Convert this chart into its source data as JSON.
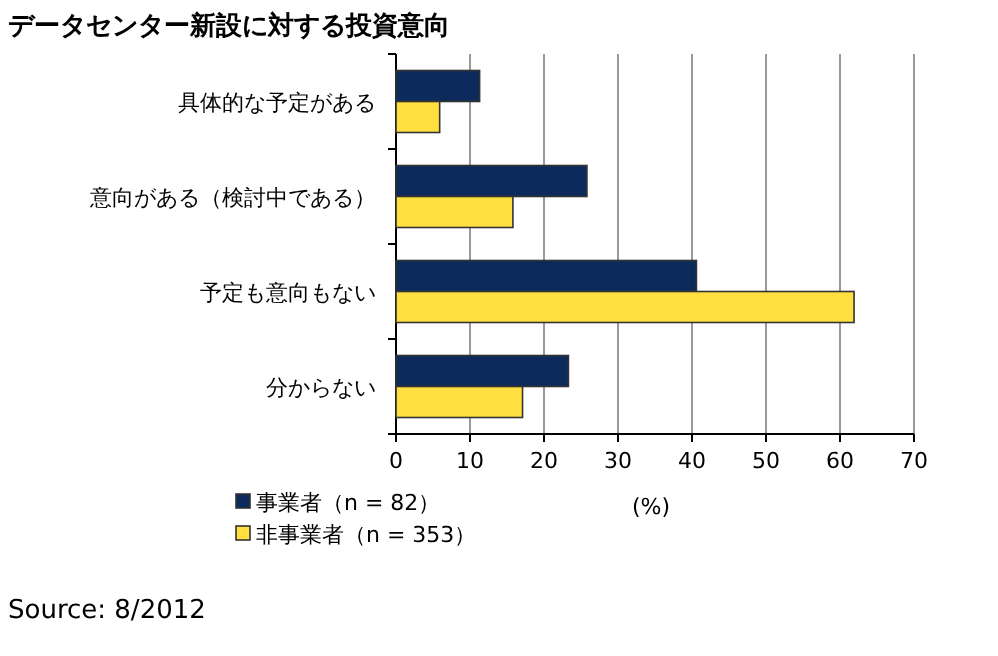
{
  "chart_data": {
    "type": "bar",
    "orientation": "horizontal",
    "title": "データセンター新設に対する投資意向",
    "xlabel": "(%)",
    "categories": [
      "具体的な予定がある",
      "意向がある（検討中である）",
      "予定も意向もない",
      "分からない"
    ],
    "series": [
      {
        "name": "事業者（n = 82）",
        "color": "#0d2a5c",
        "values": [
          11.3,
          25.8,
          40.6,
          23.3
        ]
      },
      {
        "name": "非事業者（n = 353）",
        "color": "#ffe040",
        "values": [
          5.9,
          15.8,
          61.9,
          17.1
        ]
      }
    ],
    "xlim": [
      0,
      70
    ],
    "xticks": [
      0,
      10,
      20,
      30,
      40,
      50,
      60,
      70
    ],
    "grid": "x",
    "legend": "bottom left",
    "annotations": [
      "Source: 8/2012"
    ]
  }
}
